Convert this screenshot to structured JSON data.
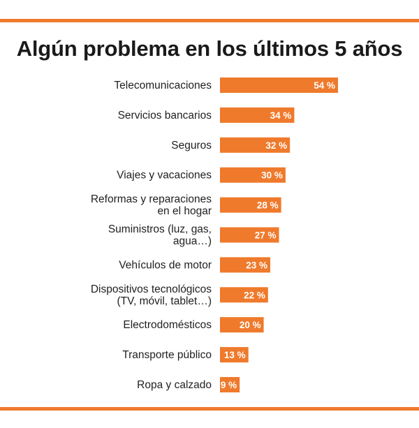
{
  "chart_data": {
    "type": "bar",
    "orientation": "horizontal",
    "title": "Algún problema en los últimos 5 años",
    "categories": [
      "Telecomunicaciones",
      "Servicios bancarios",
      "Seguros",
      "Viajes y vacaciones",
      "Reformas y reparaciones\nen el hogar",
      "Suministros (luz, gas,\nagua…)",
      "Vehículos de motor",
      "Dispositivos tecnológicos\n(TV, móvil, tablet…)",
      "Electrodomésticos",
      "Transporte público",
      "Ropa y calzado"
    ],
    "values": [
      54,
      34,
      32,
      30,
      28,
      27,
      23,
      22,
      20,
      13,
      9
    ],
    "value_labels": [
      "54 %",
      "34 %",
      "32 %",
      "30 %",
      "28 %",
      "27 %",
      "23 %",
      "22 %",
      "20 %",
      "13 %",
      "9 %"
    ],
    "unit": "%",
    "xlim": [
      0,
      100
    ],
    "grid": false,
    "legend": "none",
    "bar_color": "#ef7a2c",
    "accent_color": "#ef7a2c"
  }
}
